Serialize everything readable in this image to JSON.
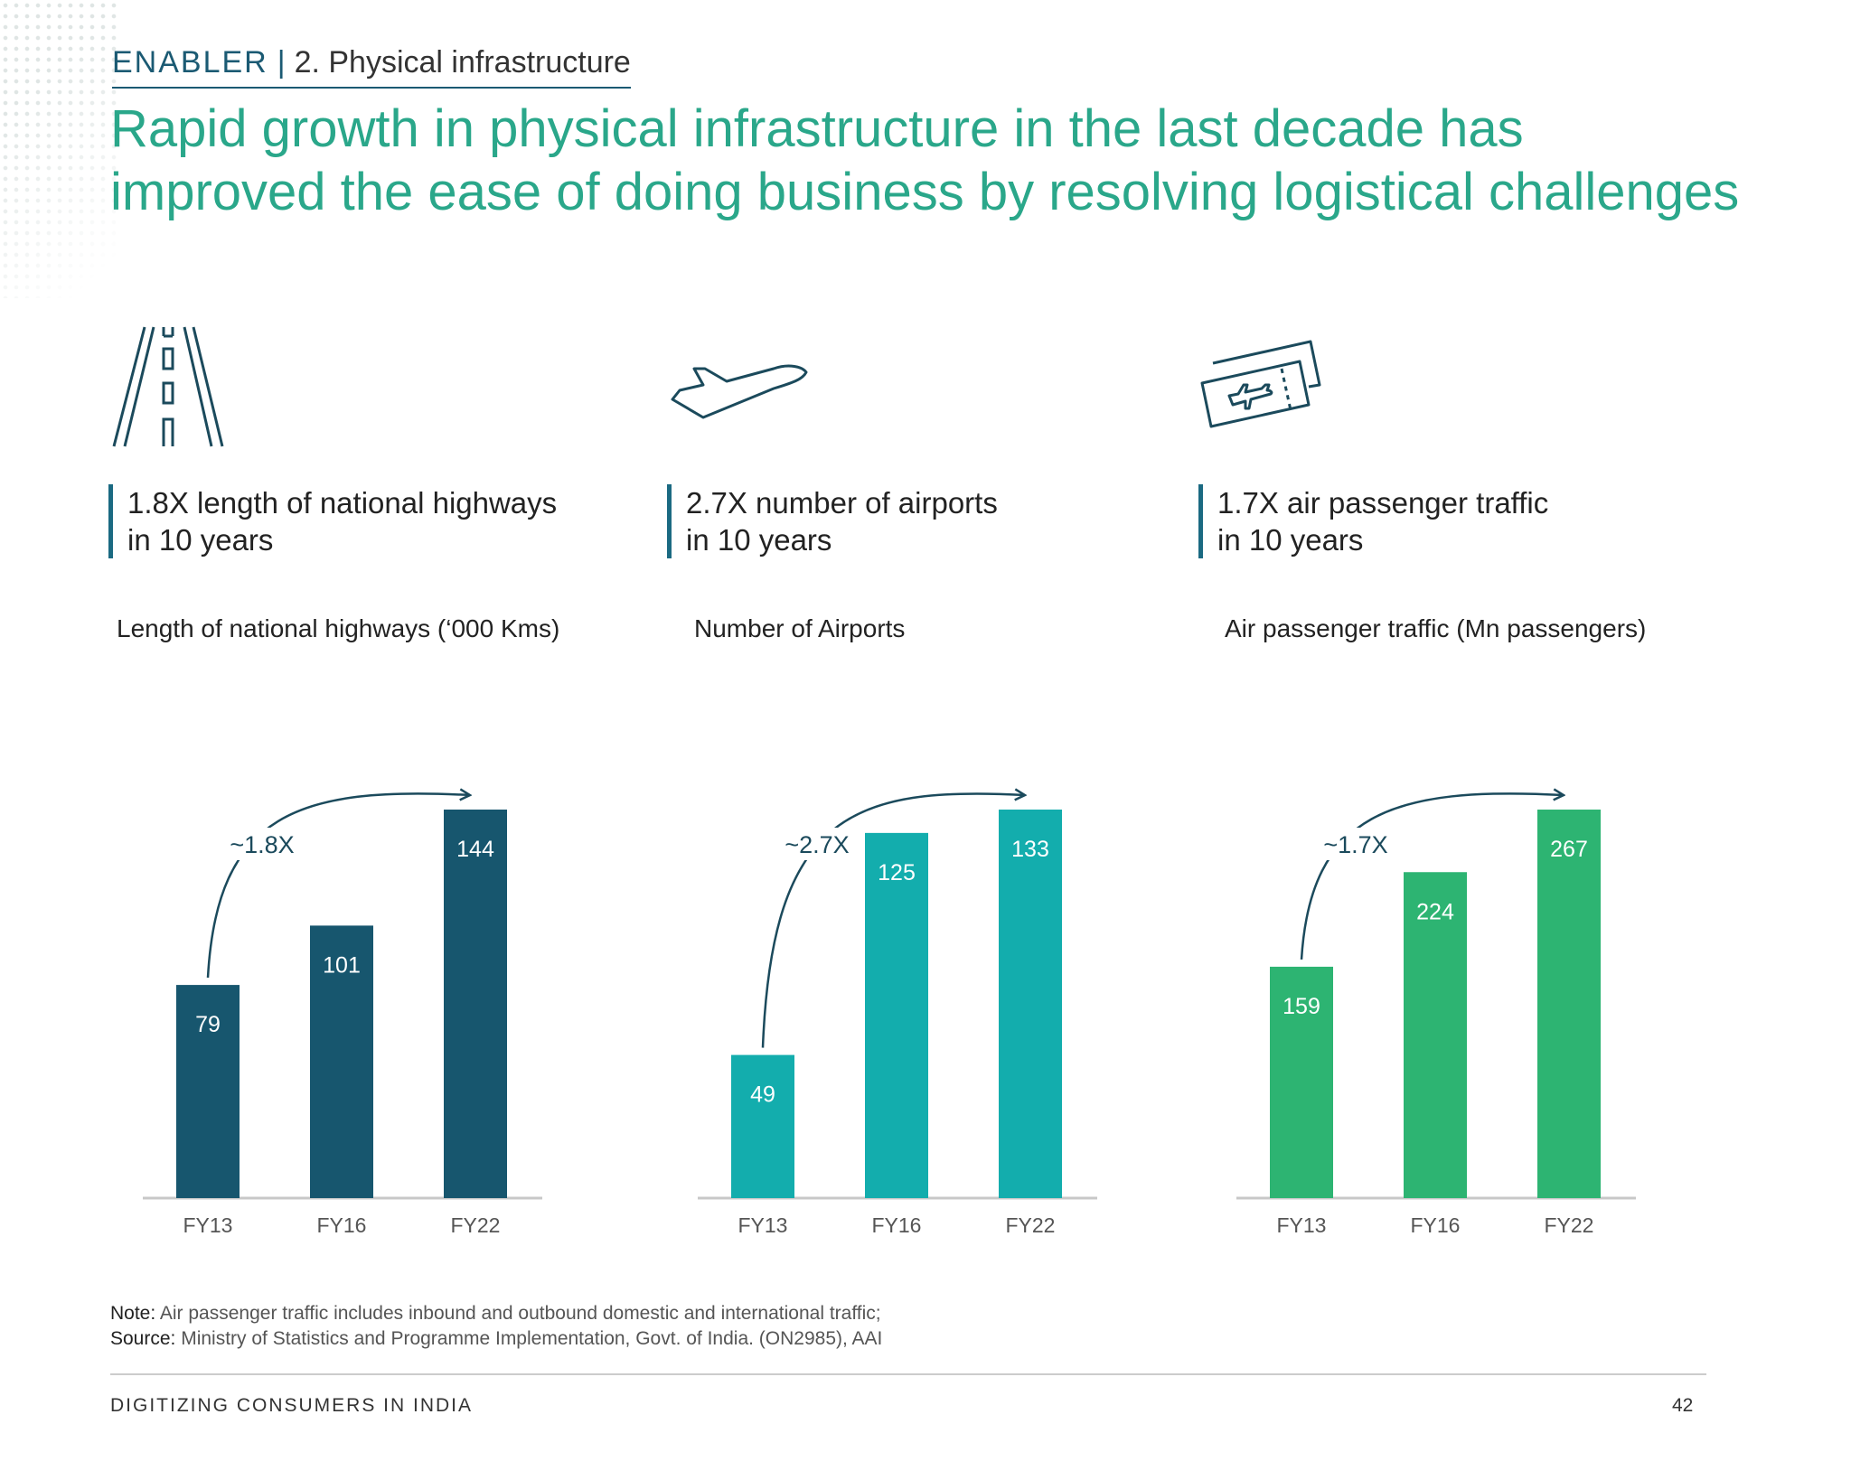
{
  "header": {
    "section": "ENABLER",
    "separator": "|",
    "subsection": "2. Physical infrastructure"
  },
  "headline": {
    "line1": "Rapid growth in physical infrastructure in the last decade has",
    "line2": "improved the ease of doing business by resolving logistical challenges"
  },
  "icons": [
    "road-icon",
    "airplane-icon",
    "boarding-pass-icon"
  ],
  "stats": [
    {
      "line1": "1.8X length of national highways",
      "line2": "in 10 years"
    },
    {
      "line1": "2.7X number of airports",
      "line2": "in 10 years"
    },
    {
      "line1": "1.7X air passenger traffic",
      "line2": "in 10 years"
    }
  ],
  "chart_data": [
    {
      "type": "bar",
      "title": "Length of national highways (‘000 Kms)",
      "categories": [
        "FY13",
        "FY16",
        "FY22"
      ],
      "values": [
        79,
        101,
        144
      ],
      "growth_label": "~1.8X",
      "color": "#17566e"
    },
    {
      "type": "bar",
      "title": "Number of Airports",
      "categories": [
        "FY13",
        "FY16",
        "FY22"
      ],
      "values": [
        49,
        125,
        133
      ],
      "growth_label": "~2.7X",
      "color": "#13adad"
    },
    {
      "type": "bar",
      "title": "Air passenger traffic (Mn passengers)",
      "categories": [
        "FY13",
        "FY16",
        "FY22"
      ],
      "values": [
        159,
        224,
        267
      ],
      "growth_label": "~1.7X",
      "color": "#2db472"
    }
  ],
  "notes": {
    "note_label": "Note:",
    "note_text": " Air passenger traffic includes inbound and outbound domestic and international traffic;",
    "source_label": "Source:",
    "source_text": " Ministry of Statistics and Programme Implementation, Govt. of India. (ON2985), AAI"
  },
  "footer": {
    "title": "DIGITIZING CONSUMERS IN INDIA",
    "page": "42"
  }
}
